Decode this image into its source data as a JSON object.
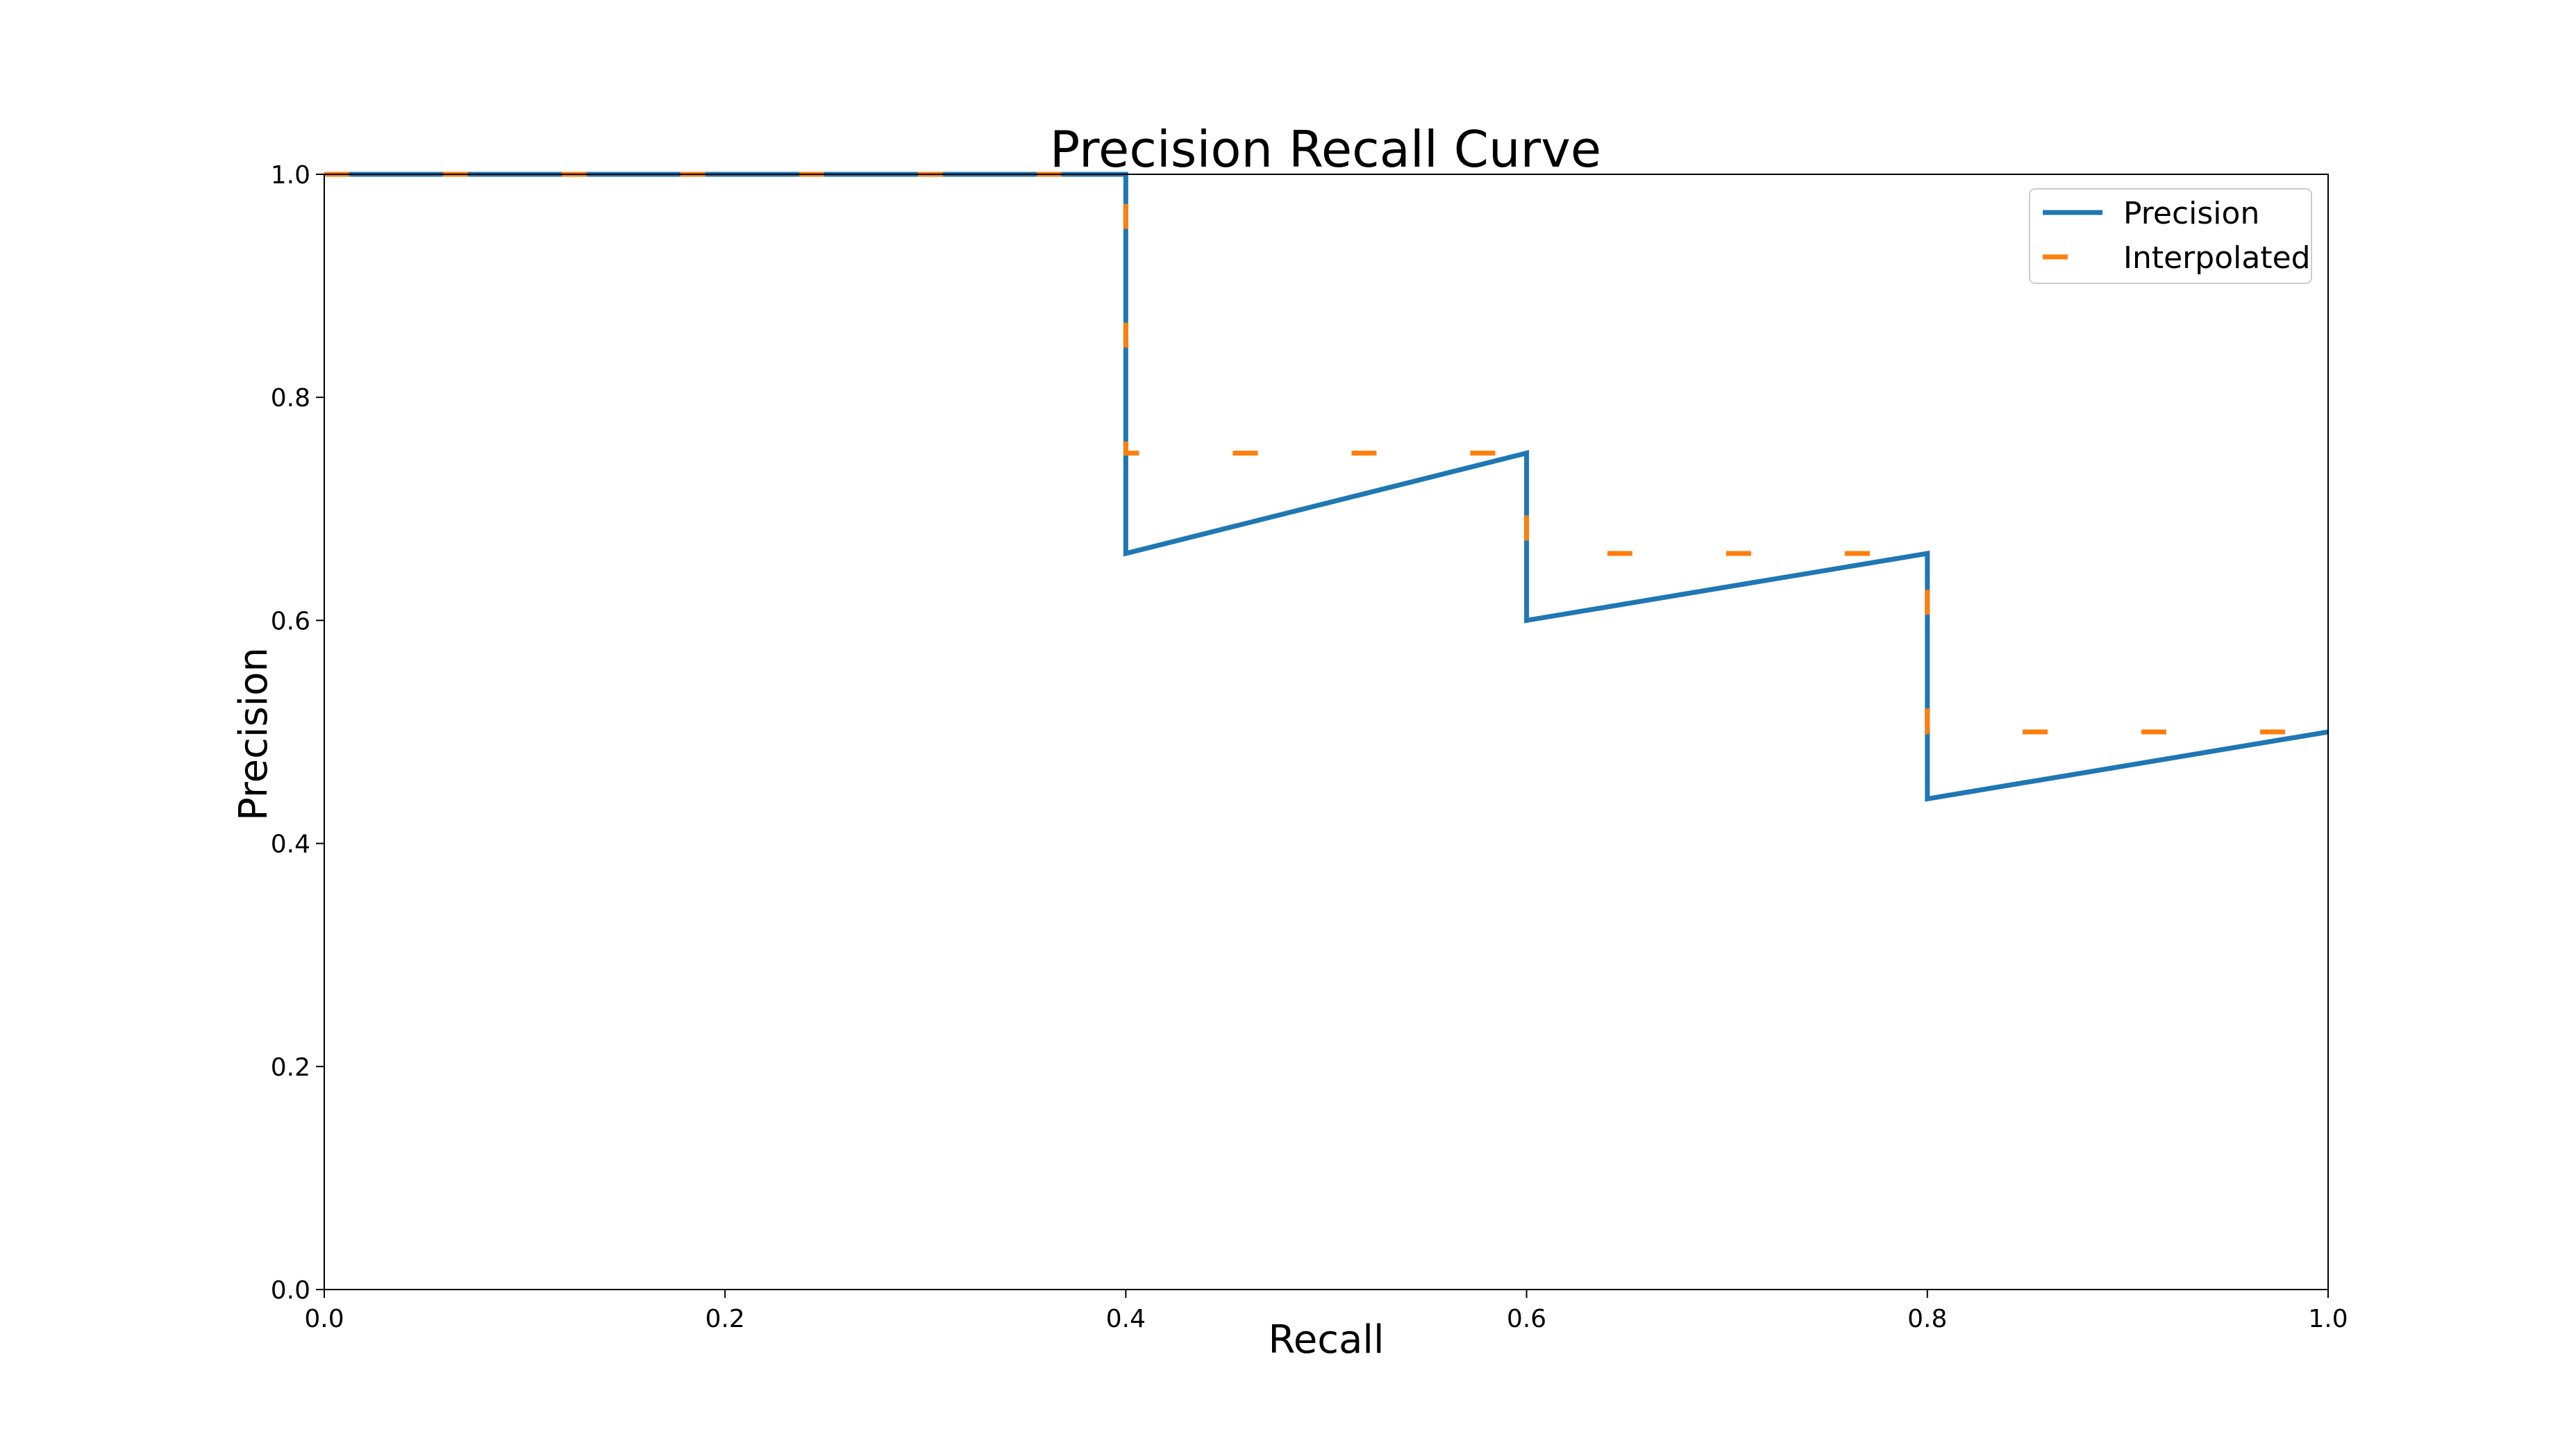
{
  "chart_data": {
    "type": "line",
    "title": "Precision Recall Curve",
    "xlabel": "Recall",
    "ylabel": "Precision",
    "xlim": [
      0.0,
      1.0
    ],
    "ylim": [
      0.0,
      1.0
    ],
    "xticks": [
      "0.0",
      "0.2",
      "0.4",
      "0.6",
      "0.8",
      "1.0"
    ],
    "yticks": [
      "0.0",
      "0.2",
      "0.4",
      "0.6",
      "0.8",
      "1.0"
    ],
    "grid": false,
    "legend_position": "top-right",
    "series": [
      {
        "name": "Precision",
        "style": "solid",
        "color": "#1f77b4",
        "points": [
          [
            0.0,
            1.0
          ],
          [
            0.4,
            1.0
          ],
          [
            0.4,
            0.66
          ],
          [
            0.6,
            0.75
          ],
          [
            0.6,
            0.6
          ],
          [
            0.8,
            0.66
          ],
          [
            0.8,
            0.44
          ],
          [
            1.0,
            0.5
          ]
        ]
      },
      {
        "name": "Interpolated",
        "style": "dashed",
        "color": "#ff7f0e",
        "points": [
          [
            0.0,
            1.0
          ],
          [
            0.4,
            1.0
          ],
          [
            0.4,
            0.75
          ],
          [
            0.6,
            0.75
          ],
          [
            0.6,
            0.66
          ],
          [
            0.8,
            0.66
          ],
          [
            0.8,
            0.5
          ],
          [
            1.0,
            0.5
          ]
        ]
      }
    ]
  }
}
